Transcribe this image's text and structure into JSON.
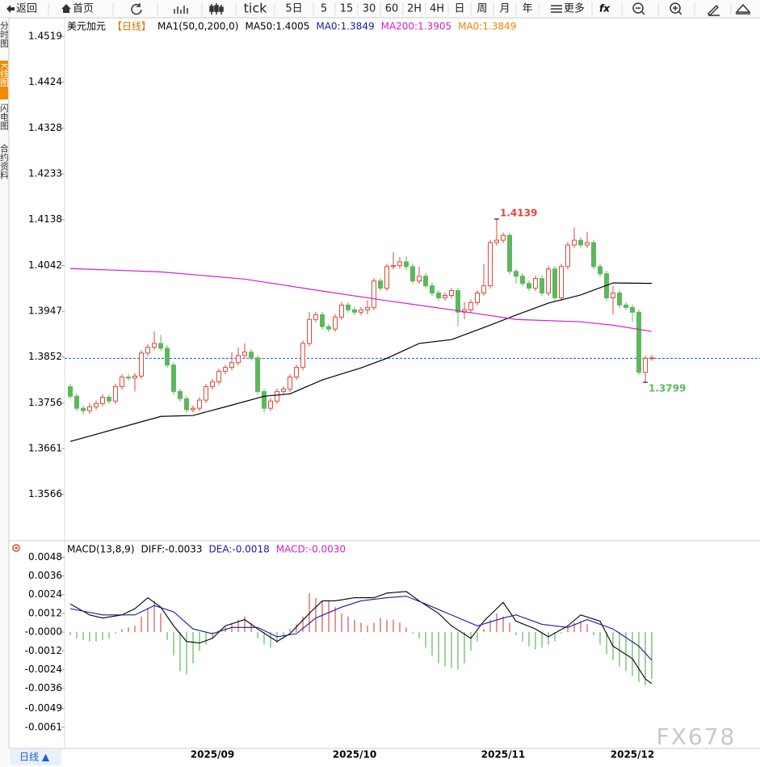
{
  "toolbar": [
    "返回",
    "首页",
    "tick",
    "5日",
    "5",
    "15",
    "30",
    "60",
    "2H",
    "4H",
    "日",
    "周",
    "月",
    "年",
    "更多"
  ],
  "side_tabs": [
    "分时图",
    "K线图",
    "闪电图",
    "合约资料"
  ],
  "bottom_tab": "日线 ▲",
  "watermark": "FX678",
  "chart_data": [
    {
      "type": "candlestick",
      "legend": [
        {
          "text": "美元加元",
          "color": "#000000"
        },
        {
          "text": "【日线】",
          "color": "#e07000"
        },
        {
          "text": "MA1(50,0,200,0)",
          "color": "#000000"
        },
        {
          "text": "MA50:1.4005",
          "color": "#000000"
        },
        {
          "text": "MA0:1.3849",
          "color": "#1a1aa0"
        },
        {
          "text": "MA200:1.3905",
          "color": "#d020d0"
        },
        {
          "text": "MA0:1.3849",
          "color": "#f08000"
        }
      ],
      "categories": [
        null,
        null,
        null,
        null,
        null,
        null,
        null,
        null,
        null,
        null,
        null,
        null,
        null,
        null,
        null,
        null,
        null,
        null,
        null,
        null,
        null,
        null,
        "2025/09",
        null,
        null,
        null,
        null,
        null,
        null,
        null,
        null,
        null,
        null,
        null,
        null,
        null,
        null,
        null,
        null,
        null,
        null,
        null,
        null,
        null,
        "2025/10",
        null,
        null,
        null,
        null,
        null,
        null,
        null,
        null,
        null,
        null,
        null,
        null,
        null,
        null,
        null,
        null,
        null,
        null,
        null,
        null,
        null,
        null,
        "2025/11",
        null,
        null,
        null,
        null,
        null,
        null,
        null,
        null,
        null,
        null,
        null,
        null,
        null,
        null,
        null,
        null,
        null,
        null,
        null,
        "2025/12",
        null,
        null,
        null
      ],
      "up_color": "#e0473b",
      "down_color": "#5cb85c",
      "candles": [
        [
          1.379,
          1.3796,
          1.3764,
          1.377
        ],
        [
          1.377,
          1.3776,
          1.3739,
          1.3745
        ],
        [
          1.3745,
          1.3751,
          1.3732,
          1.374
        ],
        [
          1.374,
          1.3756,
          1.3734,
          1.3748
        ],
        [
          1.3748,
          1.3761,
          1.3742,
          1.3755
        ],
        [
          1.3755,
          1.3774,
          1.3749,
          1.3768
        ],
        [
          1.3768,
          1.3774,
          1.3754,
          1.376
        ],
        [
          1.376,
          1.3796,
          1.3754,
          1.379
        ],
        [
          1.379,
          1.3816,
          1.3784,
          1.381
        ],
        [
          1.381,
          1.3816,
          1.3802,
          1.3808
        ],
        [
          1.3808,
          1.3818,
          1.378,
          1.3812
        ],
        [
          1.3812,
          1.3866,
          1.3806,
          1.386
        ],
        [
          1.386,
          1.3878,
          1.3854,
          1.3872
        ],
        [
          1.3872,
          1.3905,
          1.3866,
          1.388
        ],
        [
          1.388,
          1.3898,
          1.3864,
          1.387
        ],
        [
          1.387,
          1.3876,
          1.3829,
          1.3835
        ],
        [
          1.3835,
          1.3841,
          1.3774,
          1.378
        ],
        [
          1.378,
          1.3786,
          1.3759,
          1.3765
        ],
        [
          1.3765,
          1.3771,
          1.3736,
          1.3742
        ],
        [
          1.3742,
          1.3751,
          1.3736,
          1.3745
        ],
        [
          1.3745,
          1.3768,
          1.3739,
          1.3762
        ],
        [
          1.3762,
          1.3796,
          1.3756,
          1.379
        ],
        [
          1.379,
          1.3806,
          1.3784,
          1.38
        ],
        [
          1.38,
          1.3828,
          1.3794,
          1.3822
        ],
        [
          1.3822,
          1.3836,
          1.3816,
          1.383
        ],
        [
          1.383,
          1.3862,
          1.3824,
          1.384
        ],
        [
          1.384,
          1.3872,
          1.3834,
          1.3855
        ],
        [
          1.3855,
          1.388,
          1.3849,
          1.3862
        ],
        [
          1.3862,
          1.3868,
          1.3844,
          1.385
        ],
        [
          1.385,
          1.3856,
          1.3774,
          1.378
        ],
        [
          1.378,
          1.3786,
          1.3736,
          1.3745
        ],
        [
          1.3745,
          1.3766,
          1.3739,
          1.376
        ],
        [
          1.376,
          1.3786,
          1.3754,
          1.378
        ],
        [
          1.378,
          1.3791,
          1.3774,
          1.3785
        ],
        [
          1.3785,
          1.3816,
          1.3779,
          1.381
        ],
        [
          1.381,
          1.3836,
          1.3804,
          1.383
        ],
        [
          1.383,
          1.3886,
          1.3824,
          1.388
        ],
        [
          1.388,
          1.3945,
          1.3874,
          1.393
        ],
        [
          1.393,
          1.3946,
          1.3924,
          1.394
        ],
        [
          1.394,
          1.3946,
          1.3909,
          1.3915
        ],
        [
          1.3915,
          1.3921,
          1.3904,
          1.391
        ],
        [
          1.391,
          1.3941,
          1.3904,
          1.3935
        ],
        [
          1.3935,
          1.3966,
          1.3929,
          1.396
        ],
        [
          1.396,
          1.3966,
          1.3944,
          1.395
        ],
        [
          1.395,
          1.3956,
          1.3939,
          1.3945
        ],
        [
          1.3945,
          1.3956,
          1.3939,
          1.395
        ],
        [
          1.395,
          1.397,
          1.394,
          1.3955
        ],
        [
          1.3955,
          1.4016,
          1.3949,
          1.401
        ],
        [
          1.401,
          1.4016,
          1.3989,
          1.3995
        ],
        [
          1.3995,
          1.4046,
          1.3989,
          1.404
        ],
        [
          1.404,
          1.407,
          1.4034,
          1.4042
        ],
        [
          1.4042,
          1.406,
          1.4036,
          1.405
        ],
        [
          1.405,
          1.4062,
          1.4034,
          1.404
        ],
        [
          1.404,
          1.4046,
          1.4004,
          1.401
        ],
        [
          1.401,
          1.404,
          1.4004,
          1.402
        ],
        [
          1.402,
          1.4026,
          1.3994,
          1.4
        ],
        [
          1.4,
          1.4006,
          1.3979,
          1.3985
        ],
        [
          1.3985,
          1.3991,
          1.3969,
          1.3975
        ],
        [
          1.3975,
          1.3986,
          1.3969,
          1.398
        ],
        [
          1.398,
          1.3996,
          1.3974,
          1.399
        ],
        [
          1.399,
          1.3996,
          1.3915,
          1.3945
        ],
        [
          1.3945,
          1.3966,
          1.393,
          1.395
        ],
        [
          1.395,
          1.3971,
          1.3944,
          1.3965
        ],
        [
          1.3965,
          1.3991,
          1.3959,
          1.3985
        ],
        [
          1.3985,
          1.4045,
          1.3979,
          1.4
        ],
        [
          1.4,
          1.4096,
          1.3994,
          1.409
        ],
        [
          1.409,
          1.4139,
          1.4084,
          1.4095
        ],
        [
          1.4095,
          1.4111,
          1.4089,
          1.4105
        ],
        [
          1.4105,
          1.4111,
          1.4024,
          1.403
        ],
        [
          1.403,
          1.4036,
          1.4005,
          1.402
        ],
        [
          1.402,
          1.4026,
          1.3999,
          1.4005
        ],
        [
          1.4005,
          1.4011,
          1.3989,
          1.3995
        ],
        [
          1.3995,
          1.4021,
          1.3989,
          1.4015
        ],
        [
          1.4015,
          1.4021,
          1.3979,
          1.3985
        ],
        [
          1.3985,
          1.4041,
          1.3979,
          1.4035
        ],
        [
          1.4035,
          1.4041,
          1.3969,
          1.3975
        ],
        [
          1.3975,
          1.4046,
          1.3969,
          1.404
        ],
        [
          1.404,
          1.4091,
          1.4034,
          1.4085
        ],
        [
          1.4085,
          1.4122,
          1.4079,
          1.4095
        ],
        [
          1.4095,
          1.4101,
          1.4079,
          1.4085
        ],
        [
          1.4085,
          1.4112,
          1.4079,
          1.409
        ],
        [
          1.409,
          1.4096,
          1.4034,
          1.404
        ],
        [
          1.404,
          1.4046,
          1.4019,
          1.4025
        ],
        [
          1.4025,
          1.4031,
          1.3969,
          1.3975
        ],
        [
          1.3975,
          1.4,
          1.394,
          1.3985
        ],
        [
          1.3985,
          1.3991,
          1.3954,
          1.396
        ],
        [
          1.396,
          1.3966,
          1.3949,
          1.3955
        ],
        [
          1.3955,
          1.3961,
          1.3925,
          1.3945
        ],
        [
          1.3945,
          1.3951,
          1.3814,
          1.382
        ],
        [
          1.382,
          1.3855,
          1.3799,
          1.3849
        ],
        [
          1.3849,
          1.3856,
          1.3844,
          1.385
        ]
      ],
      "series": [
        {
          "name": "MA50",
          "color": "#000000",
          "x": [
            0,
            14,
            19,
            24,
            30,
            34,
            39,
            45,
            49,
            54,
            59,
            64,
            69,
            74,
            79,
            84,
            90
          ],
          "values": [
            1.3676,
            1.3728,
            1.373,
            1.3748,
            1.377,
            1.3775,
            1.3804,
            1.3829,
            1.3849,
            1.388,
            1.3888,
            1.3913,
            1.3939,
            1.3964,
            1.3981,
            1.4006,
            1.4005
          ]
        },
        {
          "name": "MA200",
          "color": "#d020d0",
          "x": [
            0,
            14,
            27,
            39,
            49,
            59,
            69,
            79,
            84,
            90
          ],
          "values": [
            1.4036,
            1.4029,
            1.4014,
            1.3989,
            1.3969,
            1.395,
            1.393,
            1.3925,
            1.3918,
            1.3905
          ]
        }
      ],
      "price_line": {
        "value": 1.3849,
        "color": "#1a5fd0"
      },
      "annotations": [
        {
          "value": 1.4139,
          "x": 66,
          "color": "#e0473b",
          "side": "above"
        },
        {
          "value": 1.3799,
          "x": 89,
          "color": "#5cb85c",
          "side": "below"
        }
      ],
      "ylim": [
        1.3471,
        1.4558
      ],
      "yticks": [
        1.4519,
        1.4424,
        1.4328,
        1.4233,
        1.4138,
        1.4042,
        1.3947,
        1.3852,
        1.3756,
        1.3661,
        1.3566
      ]
    },
    {
      "type": "macd",
      "legend": [
        {
          "text": "MACD(13,8,9)",
          "color": "#000000"
        },
        {
          "text": "DIFF:-0.0033",
          "color": "#000000"
        },
        {
          "text": "DEA:-0.0018",
          "color": "#1a1aa0"
        },
        {
          "text": "MACD:-0.0030",
          "color": "#d020d0"
        }
      ],
      "histogram": {
        "up_color": "#d9534f",
        "down_color": "#5cb85c",
        "values": [
          -0.0002,
          -0.0004,
          -0.0005,
          -0.0006,
          -0.0006,
          -0.0005,
          -0.0004,
          -0.0001,
          0.0002,
          0.0003,
          0.0004,
          0.001,
          0.0015,
          0.002,
          0.0012,
          -0.0005,
          -0.0015,
          -0.0025,
          -0.0027,
          -0.002,
          -0.0012,
          -0.0008,
          -0.0004,
          0.0001,
          0.0003,
          0.0005,
          0.0008,
          0.001,
          0.0006,
          -0.0004,
          -0.0008,
          -0.001,
          -0.0007,
          -0.0003,
          0.0002,
          0.0005,
          0.001,
          0.0025,
          0.0022,
          0.002,
          0.002,
          0.0016,
          0.0012,
          0.001,
          0.0008,
          0.0006,
          0.0004,
          0.0006,
          0.0009,
          0.0008,
          0.0008,
          0.0006,
          0.0003,
          -0.0001,
          -0.0004,
          -0.001,
          -0.0015,
          -0.002,
          -0.0022,
          -0.0023,
          -0.0024,
          -0.002,
          -0.0012,
          -0.0006,
          0.0002,
          0.0008,
          0.0012,
          0.001,
          0.0006,
          -0.0002,
          -0.0006,
          -0.0009,
          -0.0011,
          -0.001,
          -0.0008,
          -0.0006,
          -0.0001,
          0.0003,
          0.0006,
          0.0007,
          0.0005,
          -0.0002,
          -0.0008,
          -0.0014,
          -0.0018,
          -0.0022,
          -0.0025,
          -0.0028,
          -0.0032,
          -0.0034,
          -0.003
        ]
      },
      "series": [
        {
          "name": "DIFF",
          "color": "#000000",
          "x": [
            0,
            3,
            5,
            8,
            10,
            12,
            14,
            16,
            18,
            20,
            22,
            24,
            27,
            29,
            32,
            34,
            37,
            39,
            41,
            44,
            47,
            49,
            52,
            54,
            57,
            59,
            62,
            64,
            67,
            69,
            72,
            74,
            77,
            79,
            82,
            84,
            87,
            89,
            90
          ],
          "values": [
            0.0018,
            0.0011,
            0.0009,
            0.0011,
            0.0015,
            0.0022,
            0.0016,
            0.0004,
            -0.0006,
            -0.0007,
            -0.0004,
            0.0004,
            0.0008,
            0.0002,
            -0.0006,
            -0.0001,
            0.0012,
            0.002,
            0.002,
            0.0022,
            0.0022,
            0.0025,
            0.0026,
            0.002,
            0.0012,
            0.0004,
            -0.0004,
            0.0007,
            0.0019,
            0.0007,
            0.0002,
            -0.0003,
            0.0004,
            0.0011,
            0.0007,
            -0.0009,
            -0.0017,
            -0.003,
            -0.0033
          ]
        },
        {
          "name": "DEA",
          "color": "#1a1aa0",
          "x": [
            0,
            5,
            10,
            13,
            16,
            19,
            22,
            25,
            29,
            32,
            35,
            38,
            42,
            45,
            49,
            52,
            55,
            59,
            63,
            67,
            69,
            73,
            77,
            80,
            84,
            88,
            90
          ],
          "values": [
            0.0015,
            0.0011,
            0.0011,
            0.0017,
            0.0013,
            0.0002,
            -0.0001,
            0.0003,
            0.0003,
            -0.0003,
            -0.0001,
            0.0009,
            0.0016,
            0.002,
            0.0022,
            0.0023,
            0.0018,
            0.0011,
            0.0004,
            0.0009,
            0.0011,
            0.0005,
            0.0003,
            0.0008,
            0.0002,
            -0.0009,
            -0.0018
          ]
        }
      ],
      "ylim": [
        -0.0074,
        0.0057
      ],
      "yticks": [
        0.0048,
        0.0036,
        0.0024,
        0.0012,
        {
          "value": 0,
          "label": "-0.0000"
        },
        -0.0012,
        -0.0024,
        -0.0036,
        -0.0049,
        -0.0061
      ]
    }
  ]
}
